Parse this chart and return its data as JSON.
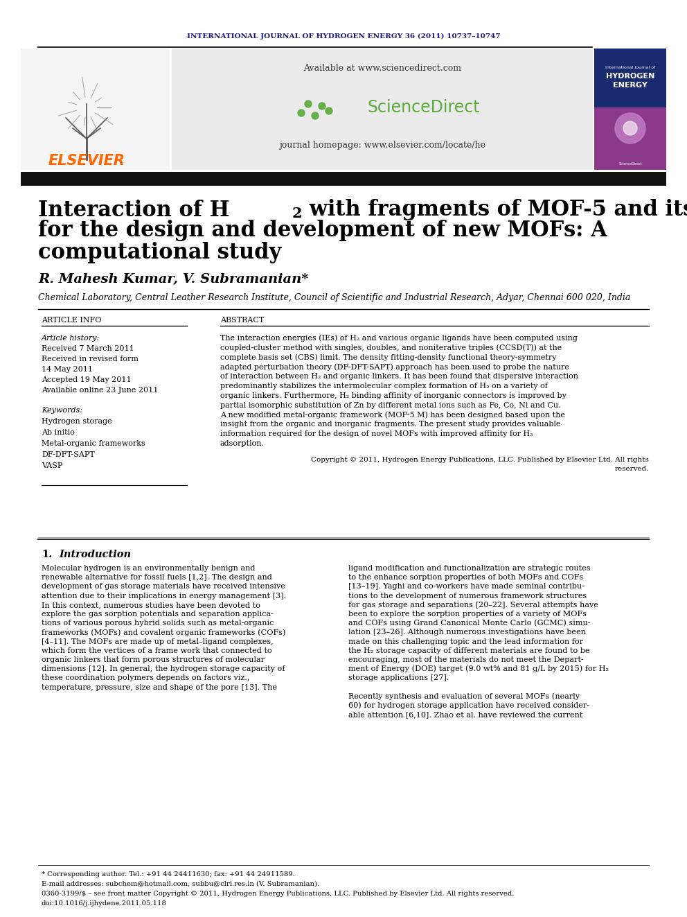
{
  "background_color": "#ffffff",
  "journal_header_text": "INTERNATIONAL JOURNAL OF HYDROGEN ENERGY 36 (2011) 10737–10747",
  "journal_header_color": "#1a1a7a",
  "header_line_color": "#000000",
  "elsevier_text": "ELSEVIER",
  "elsevier_color": "#ff6600",
  "sciencedirect_url": "Available at www.sciencedirect.com",
  "journal_homepage": "journal homepage: www.elsevier.com/locate/he",
  "header_bg": "#e8e8e8",
  "title_color": "#000000",
  "title_fontsize": 22,
  "author_text": "R. Mahesh Kumar, V. Subramanian*",
  "author_fontsize": 14,
  "affiliation_text": "Chemical Laboratory, Central Leather Research Institute, Council of Scientific and Industrial Research, Adyar, Chennai 600 020, India",
  "affiliation_fontsize": 9,
  "article_info_header": "ARTICLE INFO",
  "abstract_header": "ABSTRACT",
  "section_header_fontsize": 8,
  "article_history_label": "Article history:",
  "received1": "Received 7 March 2011",
  "received_revised": "Received in revised form",
  "received_revised_date": "14 May 2011",
  "accepted": "Accepted 19 May 2011",
  "available": "Available online 23 June 2011",
  "keywords_label": "Keywords:",
  "keyword1": "Hydrogen storage",
  "keyword2": "Ab initio",
  "keyword3": "Metal-organic frameworks",
  "keyword4": "DF-DFT-SAPT",
  "keyword5": "VASP",
  "copyright_text": "Copyright © 2011, Hydrogen Energy Publications, LLC. Published by Elsevier Ltd. All rights\nreserved.",
  "intro_section": "1.    Introduction",
  "footer_text1": "* Corresponding author. Tel.: +91 44 24411630; fax: +91 44 24911589.",
  "footer_text2": "E-mail addresses: subchem@hotmail.com, subbu@clri.res.in (V. Subramanian).",
  "footer_text3": "0360-3199/$ – see front matter Copyright © 2011, Hydrogen Energy Publications, LLC. Published by Elsevier Ltd. All rights reserved.",
  "footer_text4": "doi:10.1016/j.ijhydene.2011.05.118",
  "text_fontsize": 8.5,
  "small_fontsize": 7.5,
  "abstract_lines": [
    "The interaction energies (IEs) of H₂ and various organic ligands have been computed using",
    "coupled-cluster method with singles, doubles, and noniterative triples (CCSD(T)) at the",
    "complete basis set (CBS) limit. The density fitting-density functional theory-symmetry",
    "adapted perturbation theory (DF-DFT-SAPT) approach has been used to probe the nature",
    "of interaction between H₂ and organic linkers. It has been found that dispersive interaction",
    "predominantly stabilizes the intermolecular complex formation of H₂ on a variety of",
    "organic linkers. Furthermore, H₂ binding affinity of inorganic connectors is improved by",
    "partial isomorphic substitution of Zn by different metal ions such as Fe, Co, Ni and Cu.",
    "A new modified metal-organic framework (MOF-5 M) has been designed based upon the",
    "insight from the organic and inorganic fragments. The present study provides valuable",
    "information required for the design of novel MOFs with improved affinity for H₂",
    "adsorption."
  ],
  "intro_col1_lines": [
    "Molecular hydrogen is an environmentally benign and",
    "renewable alternative for fossil fuels [1,2]. The design and",
    "development of gas storage materials have received intensive",
    "attention due to their implications in energy management [3].",
    "In this context, numerous studies have been devoted to",
    "explore the gas sorption potentials and separation applica-",
    "tions of various porous hybrid solids such as metal-organic",
    "frameworks (MOFs) and covalent organic frameworks (COFs)",
    "[4–11]. The MOFs are made up of metal–ligand complexes,",
    "which form the vertices of a frame work that connected to",
    "organic linkers that form porous structures of molecular",
    "dimensions [12]. In general, the hydrogen storage capacity of",
    "these coordination polymers depends on factors viz.,",
    "temperature, pressure, size and shape of the pore [13]. The"
  ],
  "intro_col2_lines": [
    "ligand modification and functionalization are strategic routes",
    "to the enhance sorption properties of both MOFs and COFs",
    "[13–19]. Yaghi and co-workers have made seminal contribu-",
    "tions to the development of numerous framework structures",
    "for gas storage and separations [20–22]. Several attempts have",
    "been to explore the sorption properties of a variety of MOFs",
    "and COFs using Grand Canonical Monte Carlo (GCMC) simu-",
    "lation [23–26]. Although numerous investigations have been",
    "made on this challenging topic and the lead information for",
    "the H₂ storage capacity of different materials are found to be",
    "encouraging, most of the materials do not meet the Depart-",
    "ment of Energy (DOE) target (9.0 wt% and 81 g/L by 2015) for H₂",
    "storage applications [27].",
    "",
    "Recently synthesis and evaluation of several MOFs (nearly",
    "60) for hydrogen storage application have received consider-",
    "able attention [6,10]. Zhao et al. have reviewed the current"
  ]
}
